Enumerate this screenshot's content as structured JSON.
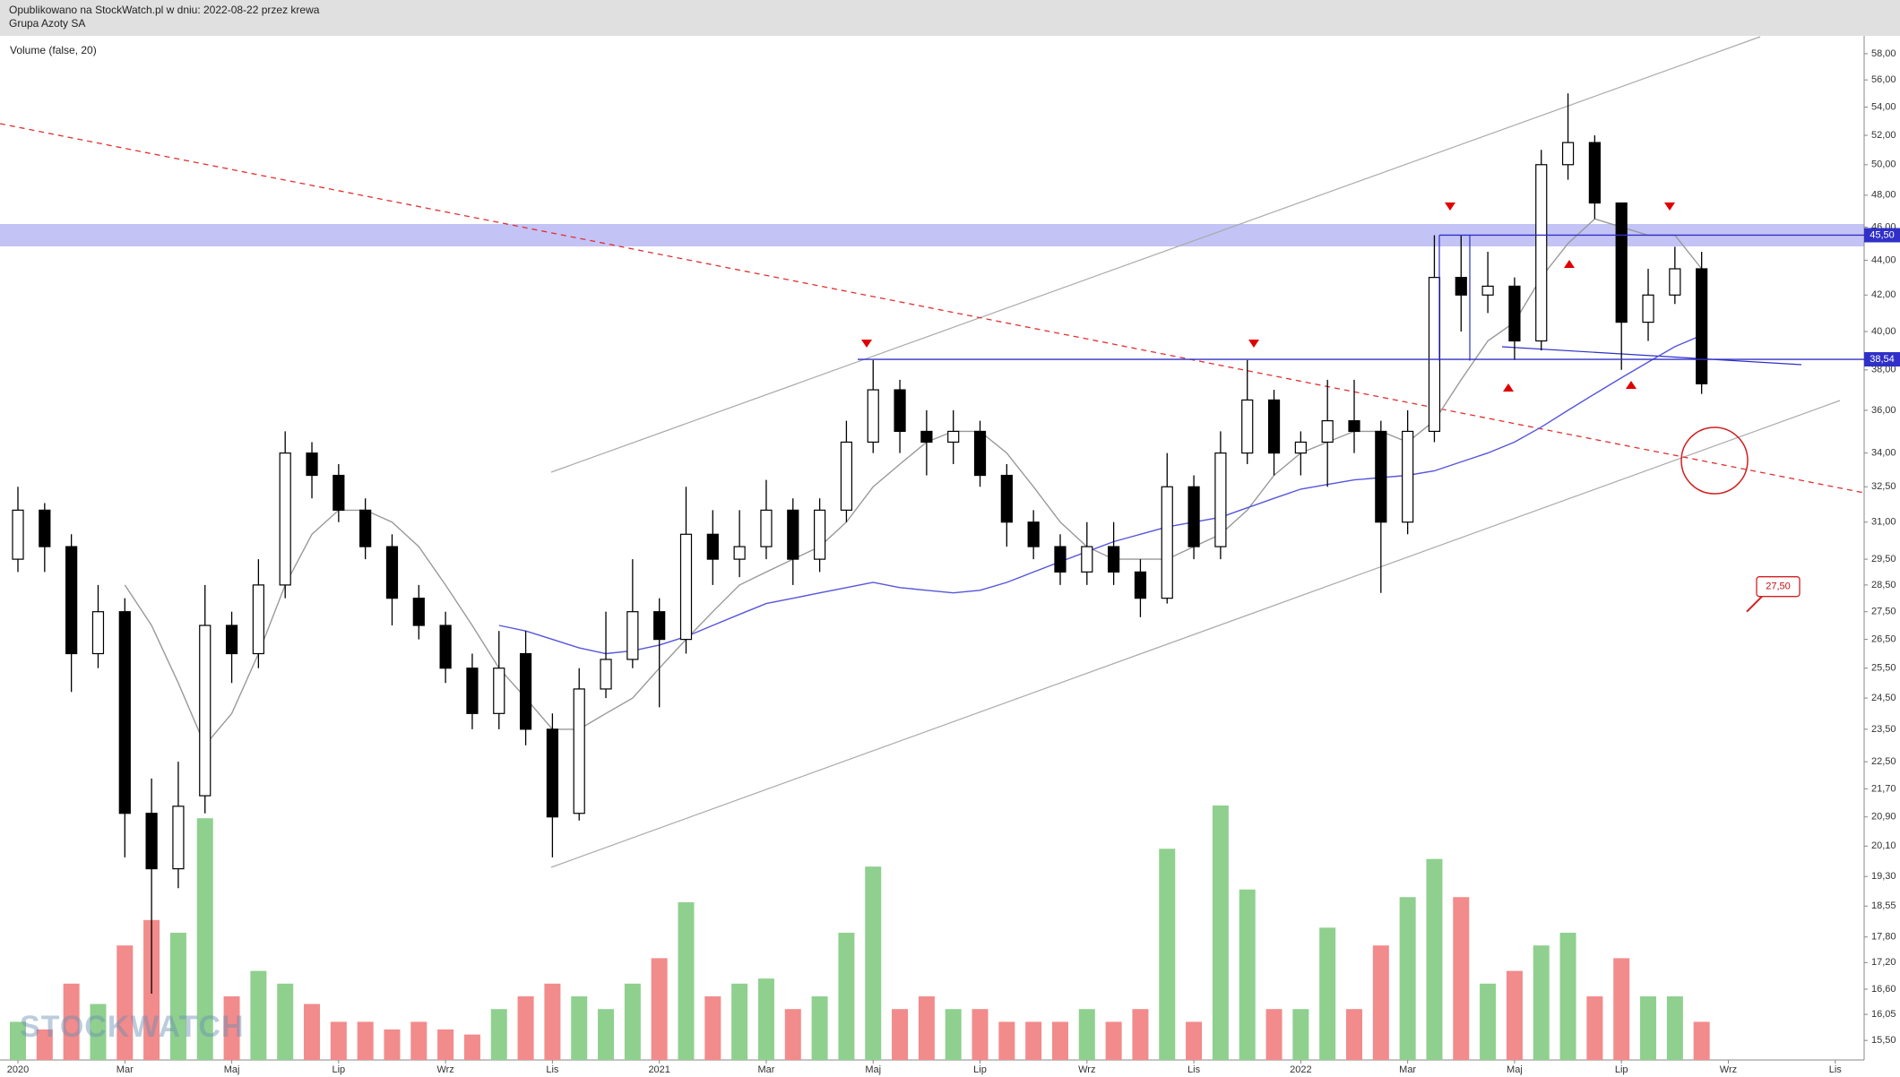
{
  "chart_data": {
    "type": "candlestick",
    "subtitle": "Opublikowano na StockWatch.pl w dniu: 2022-08-22 przez krewa",
    "title": "Grupa Azoty SA",
    "indicator_label": "Volume (false, 20)",
    "watermark": "STOCKWATCH",
    "log_scale": true,
    "candle_color": "#000000",
    "up_fill": "#ffffff",
    "volume_up_color": "#8fd08f",
    "volume_down_color": "#f28b8b",
    "level_color": "#3030c8",
    "categories": [
      "2020",
      null,
      null,
      null,
      "Mar",
      null,
      null,
      null,
      "Maj",
      null,
      null,
      null,
      "Lip",
      null,
      null,
      null,
      "Wrz",
      null,
      null,
      null,
      "Lis",
      null,
      null,
      null,
      "2021",
      null,
      null,
      null,
      "Mar",
      null,
      null,
      null,
      "Maj",
      null,
      null,
      null,
      "Lip",
      null,
      null,
      null,
      "Wrz",
      null,
      null,
      null,
      "Lis",
      null,
      null,
      null,
      "2022",
      null,
      null,
      null,
      "Mar",
      null,
      null,
      null,
      "Maj",
      null,
      null,
      null,
      "Lip",
      null,
      null,
      null,
      "Wrz",
      null,
      null,
      null,
      "Lis",
      null
    ],
    "open": [
      29.5,
      31.5,
      30,
      26,
      27.5,
      21,
      19.5,
      21.5,
      27,
      26,
      28.5,
      34,
      33,
      31.5,
      30,
      28,
      27,
      25.5,
      24,
      26,
      23.5,
      21,
      24.8,
      25.8,
      27.5,
      26.5,
      30.5,
      29.5,
      30,
      31.5,
      29.5,
      31.5,
      34.5,
      37,
      35,
      34.5,
      35,
      33,
      31,
      30,
      29,
      30,
      29,
      28,
      32.5,
      30,
      34,
      36.5,
      34,
      34.5,
      35.5,
      35,
      31,
      35,
      43,
      42,
      42.5,
      39.5,
      50,
      51.5,
      47.5,
      40.5,
      42,
      43.5,
      null,
      null,
      null,
      null,
      null,
      null
    ],
    "high": [
      32.5,
      31.8,
      30.5,
      28.5,
      28,
      22,
      22.5,
      28.5,
      27.5,
      29.5,
      35,
      34.5,
      33.5,
      32,
      30.5,
      28.5,
      27.5,
      26,
      26.8,
      26.8,
      24,
      25.5,
      27.5,
      29.5,
      28,
      32.5,
      31.5,
      31.5,
      32.8,
      32,
      32,
      35.5,
      38.5,
      37.5,
      36,
      36,
      35.5,
      33.5,
      31.5,
      30.5,
      31,
      31,
      29.5,
      34,
      33,
      35,
      38.5,
      37,
      35,
      37.5,
      37.5,
      35.5,
      36,
      45.5,
      45.5,
      44.5,
      43,
      51,
      55,
      52,
      47.5,
      43.5,
      44.8,
      44.5,
      null,
      null,
      null,
      null,
      null,
      null
    ],
    "low": [
      29,
      29,
      24.7,
      25.5,
      19.8,
      16.5,
      19,
      21,
      25,
      25.5,
      28,
      32,
      31,
      29.5,
      27,
      26.5,
      25,
      23.5,
      23.5,
      23,
      19.8,
      20.8,
      24.5,
      25.5,
      24.2,
      26,
      28.5,
      28.8,
      29.5,
      28.5,
      29,
      31,
      34,
      34,
      33,
      33.5,
      32.5,
      30,
      29.5,
      28.5,
      28.5,
      28.5,
      27.3,
      27.8,
      29.5,
      29.5,
      33.5,
      33,
      33,
      32.5,
      34,
      28.2,
      30.5,
      34.5,
      40,
      41,
      38.5,
      39,
      49,
      46.5,
      38,
      39.5,
      41.5,
      36.8,
      null,
      null,
      null,
      null,
      null,
      null
    ],
    "close": [
      31.5,
      30,
      26,
      27.5,
      21,
      19.5,
      21.2,
      27,
      26,
      28.5,
      34,
      33,
      31.5,
      30,
      28,
      27,
      25.5,
      24,
      25.5,
      23.5,
      20.9,
      24.8,
      25.8,
      27.5,
      26.5,
      30.5,
      29.5,
      30,
      31.5,
      29.5,
      31.5,
      34.5,
      37,
      35,
      34.5,
      35,
      33,
      31,
      30,
      29,
      30,
      29,
      28,
      32.5,
      30,
      34,
      36.5,
      34,
      34.5,
      35.5,
      35,
      31,
      35,
      43,
      42,
      42.5,
      39.5,
      50,
      51.5,
      47.5,
      40.5,
      42,
      43.5,
      37.3,
      null,
      null,
      null,
      null,
      null,
      null
    ],
    "volume": [
      15,
      12,
      30,
      22,
      45,
      55,
      50,
      95,
      25,
      35,
      30,
      22,
      15,
      15,
      12,
      15,
      12,
      10,
      20,
      25,
      30,
      25,
      20,
      30,
      40,
      62,
      25,
      30,
      32,
      20,
      25,
      50,
      76,
      20,
      25,
      20,
      20,
      15,
      15,
      15,
      20,
      15,
      20,
      83,
      15,
      100,
      67,
      20,
      20,
      52,
      20,
      45,
      64,
      79,
      64,
      30,
      35,
      45,
      50,
      25,
      40,
      25,
      25,
      15,
      null,
      null,
      null,
      null,
      null,
      null
    ],
    "volume_ylim": [
      0,
      100
    ],
    "overlays": [
      {
        "color": "#999999",
        "values": [
          null,
          null,
          null,
          null,
          28.5,
          27,
          25,
          23,
          24,
          26,
          28.5,
          30.5,
          31.5,
          31.5,
          31,
          30,
          28.5,
          27,
          25.5,
          24.5,
          23.5,
          23.5,
          24,
          24.5,
          25.5,
          26.5,
          27.5,
          28.5,
          29,
          29.5,
          30,
          31,
          32.5,
          33.5,
          34.5,
          35,
          35,
          34,
          32.5,
          31,
          30,
          29.5,
          29.5,
          29.5,
          30,
          30.5,
          31.5,
          33,
          34,
          34.5,
          35,
          35,
          34.5,
          35.5,
          37.5,
          39.5,
          40.5,
          43,
          45,
          46.5,
          46,
          45.5,
          45.5,
          43.5,
          null,
          null,
          null,
          null,
          null,
          null
        ]
      },
      {
        "color": "#5555dd",
        "values": [
          null,
          null,
          null,
          null,
          null,
          null,
          null,
          null,
          null,
          null,
          null,
          null,
          null,
          null,
          null,
          null,
          null,
          null,
          27,
          26.8,
          26.5,
          26.2,
          26,
          26.1,
          26.3,
          26.6,
          27,
          27.4,
          27.8,
          28,
          28.2,
          28.4,
          28.6,
          28.4,
          28.3,
          28.2,
          28.3,
          28.6,
          29,
          29.4,
          29.8,
          30.2,
          30.5,
          30.8,
          31,
          31.2,
          31.6,
          32,
          32.4,
          32.6,
          32.8,
          32.9,
          33,
          33.2,
          33.6,
          34,
          34.5,
          35.2,
          36,
          36.8,
          37.6,
          38.4,
          39.2,
          39.8,
          null,
          null,
          null,
          null,
          null,
          null
        ]
      }
    ],
    "levels": [
      {
        "value": 45.5,
        "label": "45,50"
      },
      {
        "value": 38.54,
        "label": "38,54"
      }
    ],
    "callout": {
      "value": 27.5,
      "label": "27,50"
    },
    "ylim": [
      15.1,
      59.4
    ],
    "yticks": [
      {
        "value": 58,
        "label": "58,00"
      },
      {
        "value": 56,
        "label": "56,00"
      },
      {
        "value": 54,
        "label": "54,00"
      },
      {
        "value": 52,
        "label": "52,00"
      },
      {
        "value": 50,
        "label": "50,00"
      },
      {
        "value": 48,
        "label": "48,00"
      },
      {
        "value": 46,
        "label": "46,00"
      },
      {
        "value": 44,
        "label": "44,00"
      },
      {
        "value": 42,
        "label": "42,00"
      },
      {
        "value": 40,
        "label": "40,00"
      },
      {
        "value": 38,
        "label": "38,00"
      },
      {
        "value": 36,
        "label": "36,00"
      },
      {
        "value": 34,
        "label": "34,00"
      },
      {
        "value": 32.5,
        "label": "32,50"
      },
      {
        "value": 31,
        "label": "31,00"
      },
      {
        "value": 29.5,
        "label": "29,50"
      },
      {
        "value": 28.5,
        "label": "28,50"
      },
      {
        "value": 27.5,
        "label": "27,50"
      },
      {
        "value": 26.5,
        "label": "26,50"
      },
      {
        "value": 25.5,
        "label": "25,50"
      },
      {
        "value": 24.5,
        "label": "24,50"
      },
      {
        "value": 23.5,
        "label": "23,50"
      },
      {
        "value": 22.5,
        "label": "22,50"
      },
      {
        "value": 21.7,
        "label": "21,70"
      },
      {
        "value": 20.9,
        "label": "20,90"
      },
      {
        "value": 20.1,
        "label": "20,10"
      },
      {
        "value": 19.3,
        "label": "19,30"
      },
      {
        "value": 18.55,
        "label": "18,55"
      },
      {
        "value": 17.8,
        "label": "17,80"
      },
      {
        "value": 17.2,
        "label": "17,20"
      },
      {
        "value": 16.6,
        "label": "16,60"
      },
      {
        "value": 16.05,
        "label": "16,05"
      },
      {
        "value": 15.5,
        "label": "15,50"
      }
    ]
  }
}
